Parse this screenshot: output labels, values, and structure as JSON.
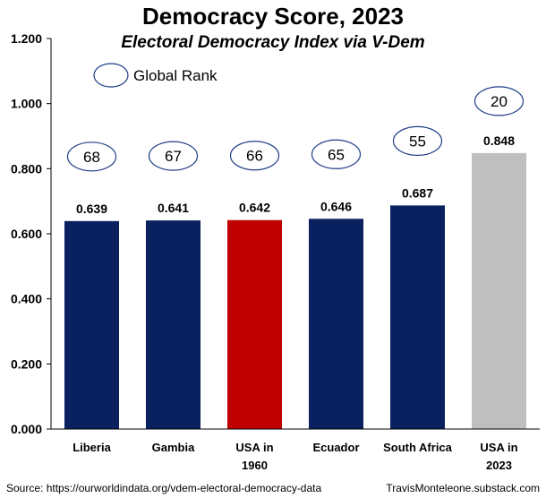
{
  "chart_data": {
    "type": "bar",
    "title": "Democracy Score, 2023",
    "subtitle": "Electoral Democracy Index via V-Dem",
    "categories": [
      [
        "Liberia"
      ],
      [
        "Gambia"
      ],
      [
        "USA in",
        "1960"
      ],
      [
        "Ecuador"
      ],
      [
        "South Africa"
      ],
      [
        "USA in",
        "2023"
      ]
    ],
    "values": [
      0.639,
      0.641,
      0.642,
      0.646,
      0.687,
      0.848
    ],
    "value_labels": [
      "0.639",
      "0.641",
      "0.642",
      "0.646",
      "0.687",
      "0.848"
    ],
    "bar_colors": [
      "#0a2160",
      "#0a2160",
      "#c00000",
      "#0a2160",
      "#0a2160",
      "#bfbfbf"
    ],
    "global_rank": [
      "68",
      "67",
      "66",
      "65",
      "55",
      "20"
    ],
    "legend": {
      "label": "Global Rank"
    },
    "ylim": [
      0,
      1.2
    ],
    "yticks": [
      "0.000",
      "0.200",
      "0.400",
      "0.600",
      "0.800",
      "1.000",
      "1.200"
    ],
    "grid": false
  },
  "footer": {
    "source": "Source: https://ourworldindata.org/vdem-electoral-democracy-data",
    "credit": "TravisMonteleone.substack.com"
  },
  "colors": {
    "ellipse_stroke": "#1f3c88",
    "axis": "#000000"
  }
}
